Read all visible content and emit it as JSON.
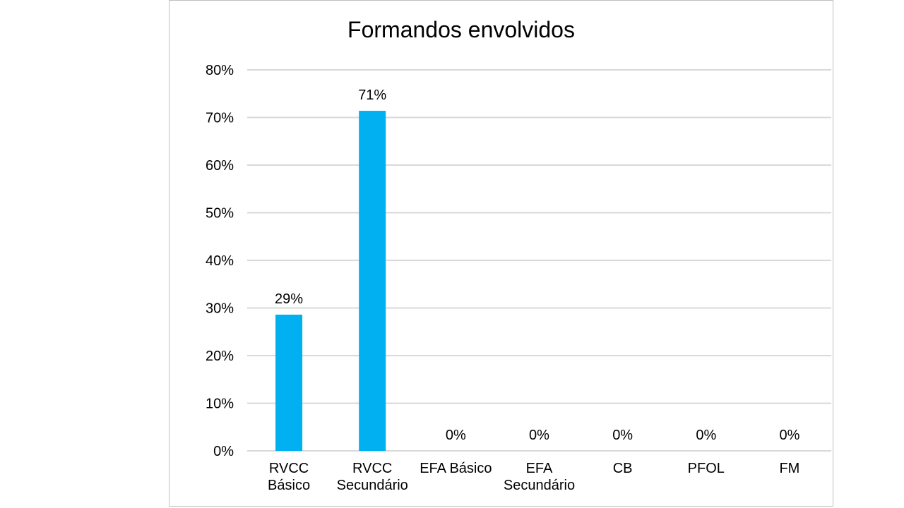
{
  "chart_data": {
    "type": "bar",
    "title": "Formandos envolvidos",
    "xlabel": "",
    "ylabel": "",
    "categories": [
      [
        "RVCC",
        "Básico"
      ],
      [
        "RVCC",
        "Secundário"
      ],
      [
        "EFA Básico"
      ],
      [
        "EFA",
        "Secundário"
      ],
      [
        "CB"
      ],
      [
        "PFOL"
      ],
      [
        "FM"
      ]
    ],
    "values": [
      29,
      71,
      0,
      0,
      0,
      0,
      0
    ],
    "value_exact": [
      28.6,
      71.4,
      0,
      0,
      0,
      0,
      0
    ],
    "data_labels": [
      "29%",
      "71%",
      "0%",
      "0%",
      "0%",
      "0%",
      "0%"
    ],
    "ylim": [
      0,
      80
    ],
    "yticks": [
      0,
      10,
      20,
      30,
      40,
      50,
      60,
      70,
      80
    ],
    "ytick_labels": [
      "0%",
      "10%",
      "20%",
      "30%",
      "40%",
      "50%",
      "60%",
      "70%",
      "80%"
    ],
    "grid": true,
    "legend": "none",
    "colors": {
      "bar": "#00b0f0",
      "grid": "#d9d9d9",
      "frame": "#bfbfbf",
      "text": "#000000"
    }
  }
}
